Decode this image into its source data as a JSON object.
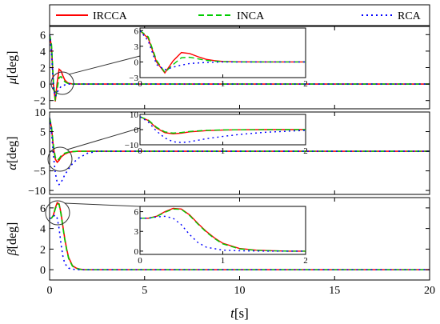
{
  "chart_data": [
    {
      "type": "line",
      "id": "mu",
      "ylabel_symbol": "μ",
      "ylabel_unit": "[deg]",
      "xlim": [
        0,
        20
      ],
      "ylim": [
        -3,
        7
      ],
      "yticks": [
        -2,
        0,
        2,
        4,
        6
      ],
      "yticklabels": [
        "−2",
        "0",
        "2",
        "4",
        "6"
      ],
      "series": [
        {
          "name": "IRCCA",
          "x": [
            0,
            0.1,
            0.2,
            0.3,
            0.4,
            0.5,
            0.6,
            0.7,
            0.8,
            0.9,
            1.0,
            1.2,
            1.5,
            2,
            20
          ],
          "y": [
            6.0,
            4.5,
            0.0,
            -2.1,
            0.2,
            1.8,
            1.6,
            1.0,
            0.5,
            0.25,
            0.1,
            0.02,
            0.0,
            0.0,
            0.0
          ]
        },
        {
          "name": "INCA",
          "x": [
            0,
            0.1,
            0.2,
            0.3,
            0.4,
            0.5,
            0.6,
            0.7,
            0.8,
            0.9,
            1.0,
            1.2,
            1.5,
            2,
            20
          ],
          "y": [
            6.0,
            4.8,
            0.3,
            -2.0,
            -0.5,
            0.8,
            0.9,
            0.6,
            0.3,
            0.15,
            0.05,
            0.0,
            0.0,
            0.0,
            0.0
          ]
        },
        {
          "name": "RCA",
          "x": [
            0,
            0.1,
            0.2,
            0.3,
            0.4,
            0.5,
            0.6,
            0.8,
            1.0,
            1.2,
            1.5,
            2,
            20
          ],
          "y": [
            6.0,
            4.0,
            -0.5,
            -1.5,
            -1.0,
            -0.6,
            -0.3,
            -0.1,
            0.0,
            0.0,
            0.0,
            0.0,
            0.0
          ]
        }
      ],
      "inset": {
        "xlim": [
          0,
          2
        ],
        "ylim": [
          -3,
          6.5
        ],
        "xticks": [
          0,
          1,
          2
        ],
        "yticks": [
          -3,
          0,
          3,
          6
        ],
        "yticklabels": [
          "−3",
          "0",
          "3",
          "6"
        ]
      }
    },
    {
      "type": "line",
      "id": "alpha",
      "ylabel_symbol": "α",
      "ylabel_unit": "[deg]",
      "xlim": [
        0,
        20
      ],
      "ylim": [
        -11,
        10
      ],
      "yticks": [
        -10,
        -5,
        0,
        5,
        10
      ],
      "yticklabels": [
        "−10",
        "−5",
        "0",
        "5",
        "10"
      ],
      "series": [
        {
          "name": "IRCCA",
          "x": [
            0,
            0.1,
            0.2,
            0.3,
            0.4,
            0.5,
            0.6,
            0.8,
            1.0,
            1.2,
            1.5,
            2,
            20
          ],
          "y": [
            8.5,
            6.0,
            1.0,
            -2.0,
            -2.8,
            -2.3,
            -1.5,
            -0.7,
            -0.3,
            -0.1,
            0.0,
            0.0,
            0.0
          ]
        },
        {
          "name": "INCA",
          "x": [
            0,
            0.1,
            0.2,
            0.3,
            0.4,
            0.5,
            0.6,
            0.8,
            1.0,
            1.2,
            1.5,
            2,
            20
          ],
          "y": [
            8.5,
            6.3,
            1.5,
            -1.5,
            -2.3,
            -1.9,
            -1.2,
            -0.5,
            -0.2,
            -0.1,
            0.0,
            0.0,
            0.0
          ]
        },
        {
          "name": "RCA",
          "x": [
            0,
            0.1,
            0.2,
            0.3,
            0.4,
            0.5,
            0.6,
            0.8,
            1.0,
            1.2,
            1.5,
            2.0,
            2.5,
            20
          ],
          "y": [
            8.5,
            5.0,
            -1.0,
            -5.5,
            -8.0,
            -8.5,
            -8.0,
            -6.0,
            -4.5,
            -3.2,
            -1.8,
            -0.5,
            0.0,
            0.0
          ]
        }
      ],
      "inset": {
        "xlim": [
          0,
          2
        ],
        "ylim": [
          -10,
          10
        ],
        "xticks": [
          0,
          1,
          2
        ],
        "yticks": [
          -10,
          0,
          10
        ],
        "yticklabels": [
          "−10",
          "0",
          "10"
        ]
      }
    },
    {
      "type": "line",
      "id": "beta",
      "ylabel_symbol": "β",
      "ylabel_unit": "[deg]",
      "xlim": [
        0,
        20
      ],
      "ylim": [
        -1,
        7
      ],
      "yticks": [
        0,
        2,
        4,
        6
      ],
      "yticklabels": [
        "0",
        "2",
        "4",
        "6"
      ],
      "xticks": [
        0,
        5,
        10,
        15,
        20
      ],
      "xticklabels": [
        "0",
        "5",
        "10",
        "15",
        "20"
      ],
      "xlabel_symbol": "t",
      "xlabel_unit": "[s]",
      "series": [
        {
          "name": "IRCCA",
          "x": [
            0,
            0.1,
            0.2,
            0.3,
            0.4,
            0.5,
            0.6,
            0.7,
            0.8,
            0.9,
            1.0,
            1.2,
            1.4,
            1.6,
            1.8,
            2.0,
            20
          ],
          "y": [
            5.0,
            5.0,
            5.3,
            6.0,
            6.5,
            6.4,
            5.5,
            4.2,
            3.0,
            2.0,
            1.2,
            0.4,
            0.15,
            0.05,
            0.0,
            0.0,
            0.0
          ]
        },
        {
          "name": "INCA",
          "x": [
            0,
            0.1,
            0.2,
            0.3,
            0.4,
            0.5,
            0.6,
            0.7,
            0.8,
            0.9,
            1.0,
            1.2,
            1.4,
            1.6,
            1.8,
            2.0,
            20
          ],
          "y": [
            5.0,
            5.0,
            5.25,
            5.9,
            6.4,
            6.35,
            5.4,
            4.1,
            2.9,
            1.9,
            1.1,
            0.35,
            0.12,
            0.04,
            0.0,
            0.0,
            0.0
          ]
        },
        {
          "name": "RCA",
          "x": [
            0,
            0.1,
            0.2,
            0.3,
            0.4,
            0.5,
            0.6,
            0.7,
            0.8,
            1.0,
            1.2,
            1.5,
            2.0,
            20
          ],
          "y": [
            5.0,
            5.0,
            5.2,
            5.3,
            5.0,
            4.0,
            2.5,
            1.3,
            0.6,
            0.15,
            0.05,
            0.0,
            0.0,
            0.0
          ]
        }
      ],
      "inset": {
        "xlim": [
          0,
          2
        ],
        "ylim": [
          -0.5,
          6.8
        ],
        "xticks": [
          0,
          1,
          2
        ],
        "yticks": [
          0,
          3,
          6
        ],
        "yticklabels": [
          "0",
          "3",
          "6"
        ]
      }
    }
  ],
  "legend": {
    "items": [
      {
        "label": "IRCCA",
        "color": "#ff0000",
        "dash": "solid"
      },
      {
        "label": "INCA",
        "color": "#00cc00",
        "dash": "dashed"
      },
      {
        "label": "RCA",
        "color": "#0000ff",
        "dash": "dotted"
      }
    ],
    "placement": "top"
  }
}
